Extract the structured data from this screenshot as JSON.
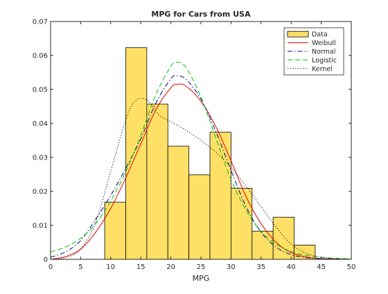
{
  "chart_data": {
    "type": "bar",
    "title": "MPG for Cars from USA",
    "xlabel": "MPG",
    "ylabel": "",
    "xlim": [
      0,
      50
    ],
    "ylim": [
      0,
      0.07
    ],
    "xticks": [
      "0",
      "5",
      "10",
      "15",
      "20",
      "25",
      "30",
      "35",
      "40",
      "45",
      "50"
    ],
    "yticks": [
      "0",
      "0.01",
      "0.02",
      "0.03",
      "0.04",
      "0.05",
      "0.06",
      "0.07"
    ],
    "grid": false,
    "legend_position": "top-right",
    "histogram": {
      "name": "Data",
      "color": "#FFE066",
      "edges": [
        9.0,
        12.5,
        16.0,
        19.5,
        23.0,
        26.5,
        30.0,
        33.5,
        37.0,
        40.5,
        44.0
      ],
      "values": [
        0.0168,
        0.0623,
        0.0457,
        0.0333,
        0.0249,
        0.0374,
        0.0209,
        0.0083,
        0.0124,
        0.0042
      ]
    },
    "series": [
      {
        "name": "Weibull",
        "color": "#E00000",
        "style": "solid",
        "x": [
          0,
          2.5,
          5,
          7.5,
          10,
          12.5,
          15,
          17.5,
          20,
          21,
          22.5,
          25,
          27.5,
          30,
          32.5,
          35,
          37.5,
          40,
          42.5,
          45,
          47.5,
          50
        ],
        "y": [
          0,
          0.0008,
          0.003,
          0.008,
          0.015,
          0.024,
          0.034,
          0.044,
          0.0505,
          0.0515,
          0.051,
          0.0465,
          0.039,
          0.029,
          0.0185,
          0.0105,
          0.005,
          0.002,
          0.0007,
          0.0002,
          0.0001,
          0
        ]
      },
      {
        "name": "Normal",
        "color": "#00007F",
        "style": "dashdot",
        "x": [
          0,
          2.5,
          5,
          7.5,
          10,
          12.5,
          15,
          17.5,
          20,
          21,
          22.5,
          25,
          27.5,
          30,
          32.5,
          35,
          37.5,
          40,
          42.5,
          45,
          47.5,
          50
        ],
        "y": [
          0.0006,
          0.0022,
          0.0055,
          0.0118,
          0.0188,
          0.0268,
          0.0355,
          0.046,
          0.0532,
          0.054,
          0.053,
          0.0472,
          0.0375,
          0.0262,
          0.0155,
          0.008,
          0.0036,
          0.0014,
          0.0005,
          0.0002,
          0.0001,
          0
        ]
      },
      {
        "name": "Logistic",
        "color": "#00C000",
        "style": "dashed",
        "x": [
          0,
          2.5,
          5,
          7.5,
          10,
          12.5,
          15,
          17.5,
          20,
          21,
          22.5,
          25,
          27.5,
          30,
          32.5,
          35,
          37.5,
          40,
          42.5,
          45,
          47.5,
          50
        ],
        "y": [
          0.0022,
          0.0036,
          0.0062,
          0.0105,
          0.0172,
          0.0258,
          0.0365,
          0.0485,
          0.0568,
          0.058,
          0.0565,
          0.0478,
          0.0355,
          0.0235,
          0.0145,
          0.0082,
          0.0045,
          0.0023,
          0.0012,
          0.0006,
          0.0003,
          0.0002
        ]
      },
      {
        "name": "Kernel",
        "color": "#000000",
        "style": "dotted",
        "x": [
          0,
          2.5,
          5,
          7.5,
          10,
          12.5,
          14,
          16,
          18,
          20,
          22.5,
          25,
          27.5,
          30,
          32.5,
          35,
          37.5,
          40,
          42.5,
          45,
          47.5,
          50
        ],
        "y": [
          0,
          0.0005,
          0.003,
          0.011,
          0.026,
          0.041,
          0.0465,
          0.047,
          0.0425,
          0.0405,
          0.038,
          0.035,
          0.0315,
          0.027,
          0.0215,
          0.0155,
          0.0095,
          0.0045,
          0.0018,
          0.0006,
          0.0002,
          0
        ]
      }
    ]
  }
}
